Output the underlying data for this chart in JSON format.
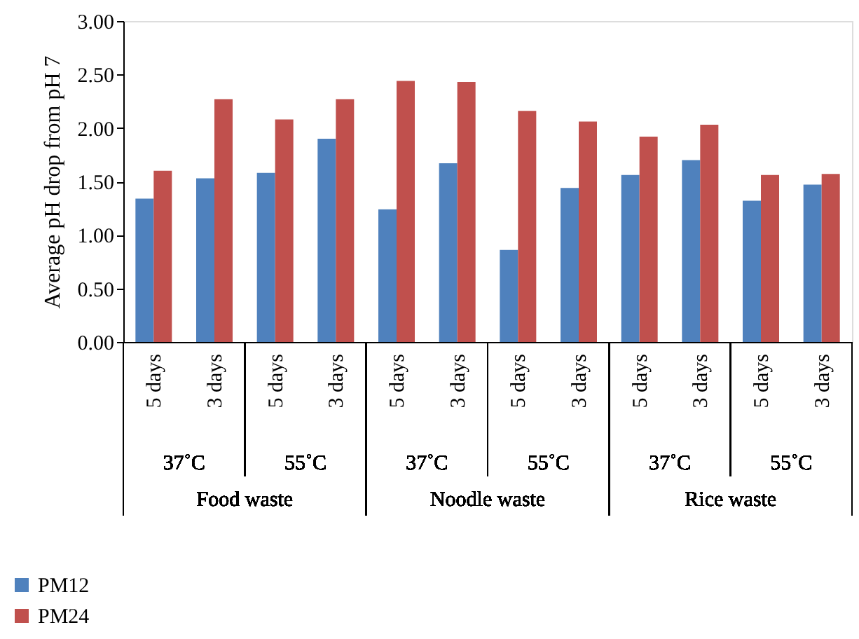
{
  "chart_data": {
    "type": "bar",
    "ylabel": "Average pH drop from pH 7",
    "categories": [
      "5 days",
      "3 days",
      "5 days",
      "3 days",
      "5 days",
      "3 days",
      "5 days",
      "3 days",
      "5 days",
      "3 days",
      "5 days",
      "3 days"
    ],
    "series": [
      {
        "name": "PM12",
        "color": "#4f81bd",
        "values": [
          1.34,
          1.53,
          1.58,
          1.9,
          1.24,
          1.67,
          0.86,
          1.44,
          1.56,
          1.7,
          1.32,
          1.47
        ]
      },
      {
        "name": "PM24",
        "color": "#c0504d",
        "values": [
          1.6,
          2.27,
          2.08,
          2.27,
          2.44,
          2.43,
          2.16,
          2.06,
          1.92,
          2.03,
          1.56,
          1.57
        ]
      }
    ],
    "annotations": [
      "37˚C",
      "55˚C",
      "37˚C",
      "55˚C",
      "37˚C",
      "55˚C",
      "Food waste",
      "Noodle waste",
      "Rice waste"
    ],
    "ylim": [
      0,
      3
    ],
    "yticks": [
      {
        "value": 0,
        "label": "0.00"
      },
      {
        "value": 0.5,
        "label": "0.50"
      },
      {
        "value": 1,
        "label": "1.00"
      },
      {
        "value": 1.5,
        "label": "1.50"
      },
      {
        "value": 2,
        "label": "2.00"
      },
      {
        "value": 2.5,
        "label": "2.50"
      },
      {
        "value": 3,
        "label": "3.00"
      }
    ],
    "grid": false,
    "legend": "bottom left"
  }
}
